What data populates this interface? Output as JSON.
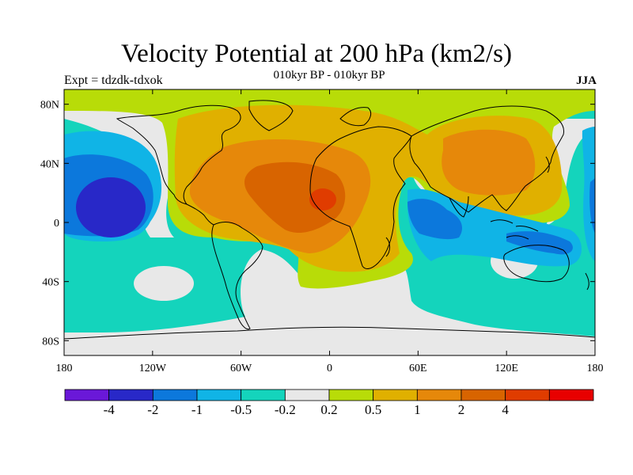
{
  "title": "Velocity Potential at 200 hPa (km2/s)",
  "subtitle": "010kyr BP - 010kyr BP",
  "experiment_label": "Expt = tdzdk-tdxok",
  "season_label": "JJA",
  "map": {
    "lon_range": [
      -180,
      180
    ],
    "lat_range": [
      -90,
      90
    ],
    "y_tick_labels": [
      {
        "lat": 80,
        "label": "80N"
      },
      {
        "lat": 40,
        "label": "40N"
      },
      {
        "lat": 0,
        "label": "0"
      },
      {
        "lat": -40,
        "label": "40S"
      },
      {
        "lat": -80,
        "label": "80S"
      }
    ],
    "x_tick_labels": [
      {
        "lon": -180,
        "label": "180"
      },
      {
        "lon": -120,
        "label": "120W"
      },
      {
        "lon": -60,
        "label": "60W"
      },
      {
        "lon": 0,
        "label": "0"
      },
      {
        "lon": 60,
        "label": "60E"
      },
      {
        "lon": 120,
        "label": "120E"
      },
      {
        "lon": 180,
        "label": "180"
      }
    ]
  },
  "colorbar": {
    "colors": [
      "#6a18d8",
      "#2828c8",
      "#0c78dc",
      "#10b4e6",
      "#14d4bc",
      "#e8e8e8",
      "#b8dc08",
      "#e0b000",
      "#e6880a",
      "#d86400",
      "#e03c00",
      "#e80000"
    ],
    "labels": [
      "-4",
      "-2",
      "-1",
      "-0.5",
      "-0.2",
      "0.2",
      "0.5",
      "1",
      "2",
      "4"
    ]
  },
  "field_colors": {
    "strong_negative": "#2828c8",
    "negative": "#0c78dc",
    "weak_negative": "#10b4e6",
    "slight_negative": "#14d4bc",
    "neutral": "#e8e8e8",
    "slight_positive": "#b8dc08",
    "weak_positive": "#e0b000",
    "positive": "#e6880a",
    "strong_positive": "#d86400",
    "peak_positive": "#e03c00"
  }
}
